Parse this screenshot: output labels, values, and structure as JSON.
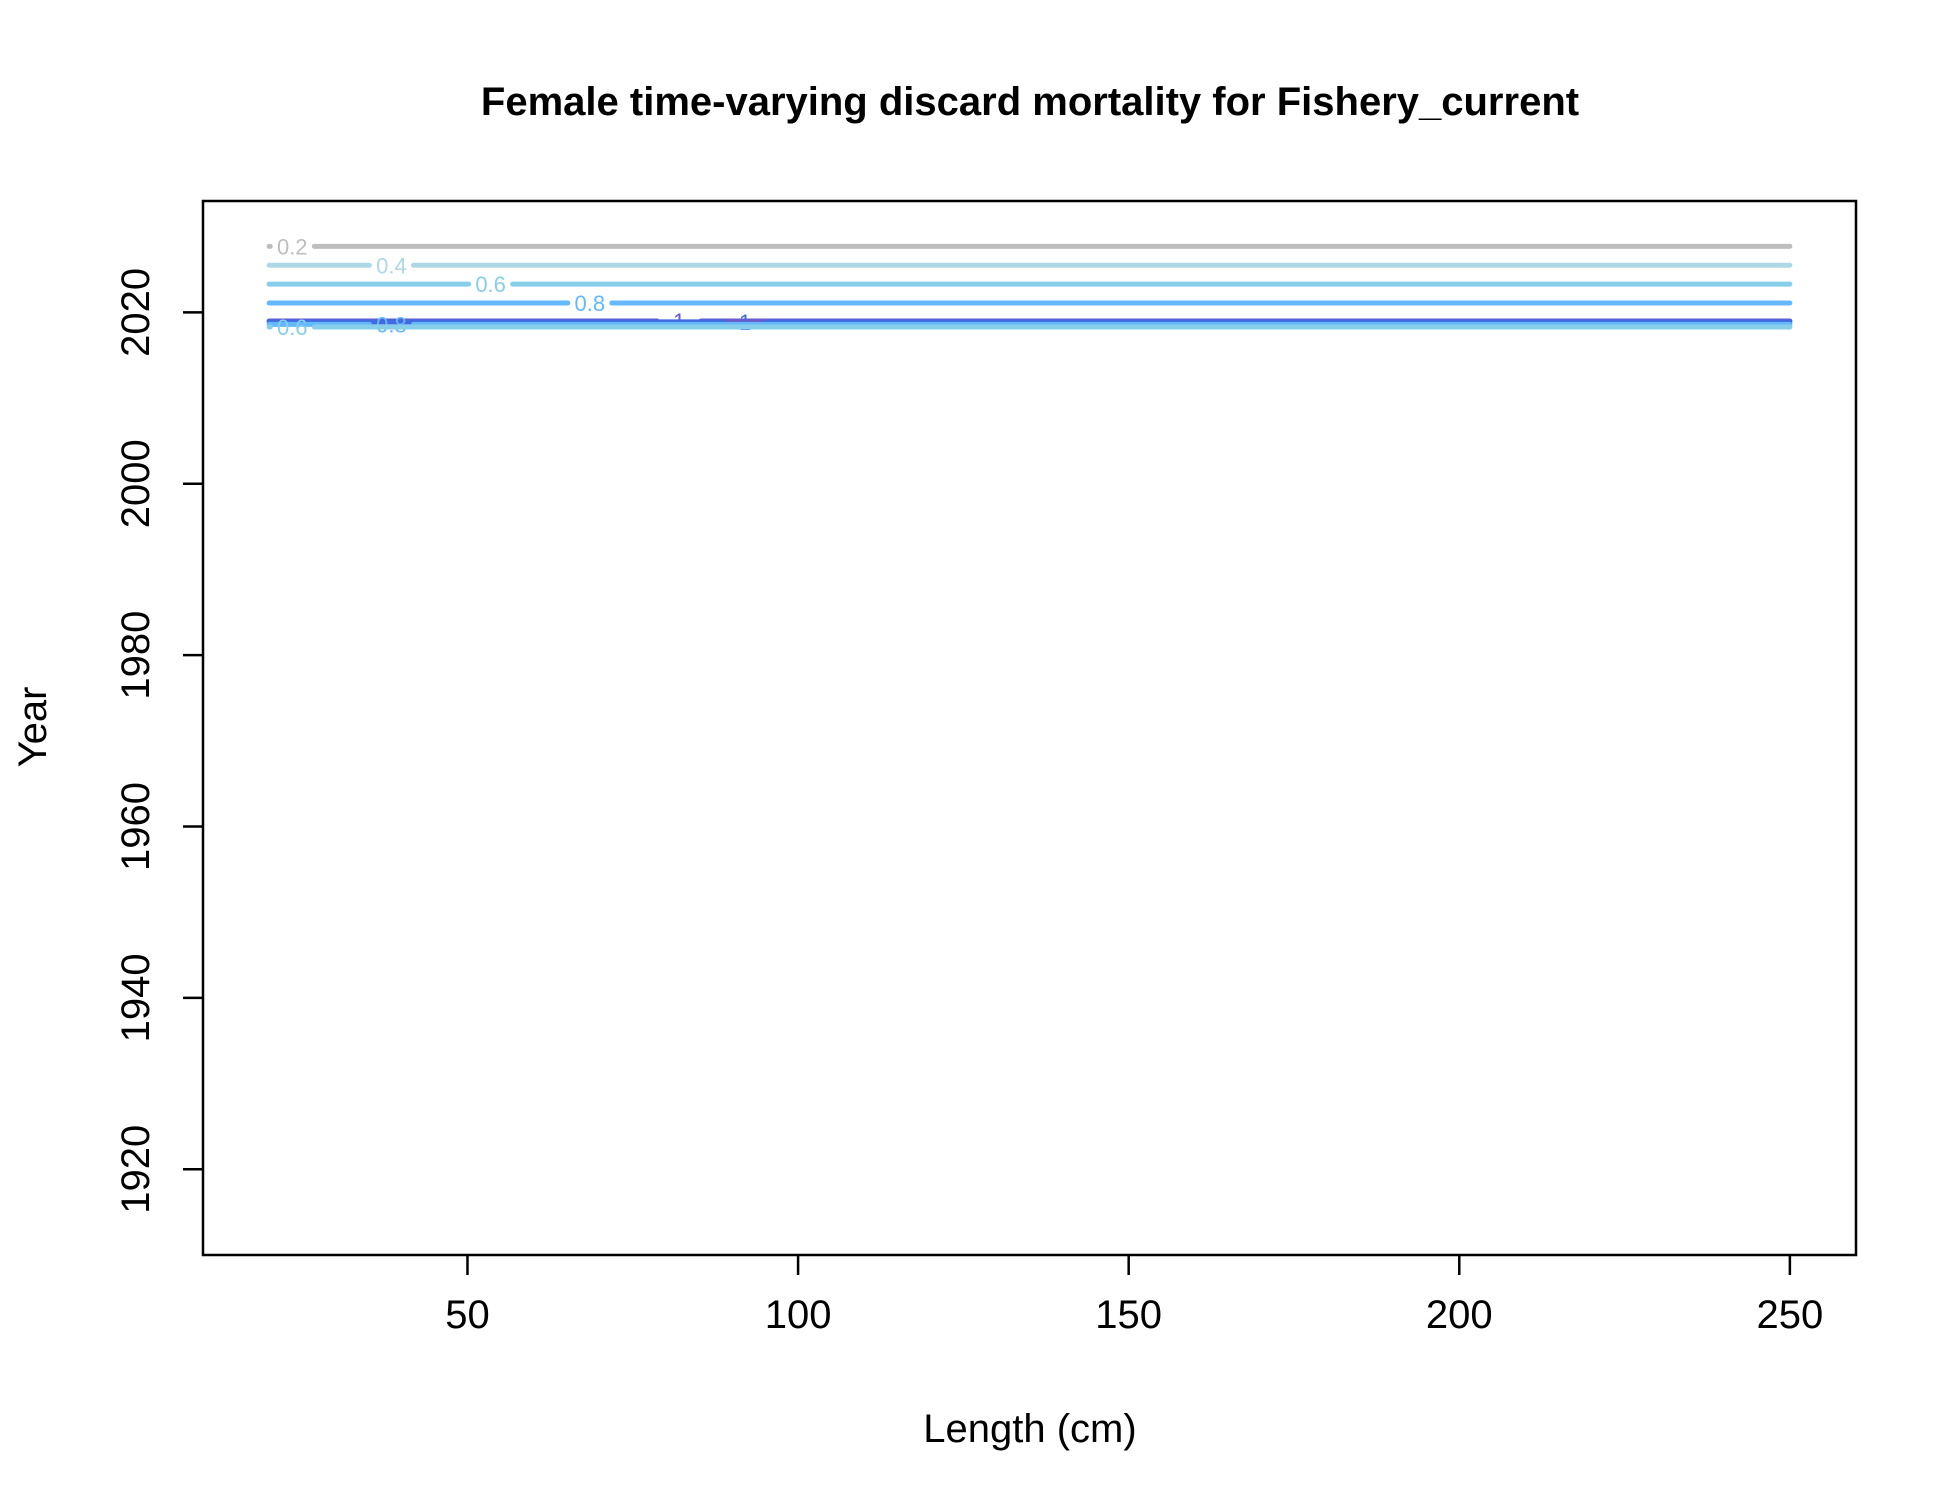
{
  "chart_data": {
    "type": "contour",
    "title": "Female time-varying discard mortality for Fishery_current",
    "xlabel": "Length (cm)",
    "ylabel": "Year",
    "xlim": [
      10,
      260
    ],
    "ylim": [
      1910,
      2033
    ],
    "x_ticks": [
      50,
      100,
      150,
      200,
      250
    ],
    "y_ticks": [
      1920,
      1940,
      1960,
      1980,
      2000,
      2020
    ],
    "x_range": [
      20,
      250
    ],
    "contours": [
      {
        "level": "0.2",
        "year": 2027.7,
        "color": "#bebebe",
        "label_x": 23.5
      },
      {
        "level": "0.4",
        "year": 2025.5,
        "color": "#add8e6",
        "label_x": 38.5
      },
      {
        "level": "0.6",
        "year": 2023.3,
        "color": "#87ceeb",
        "label_x": 53.5
      },
      {
        "level": "0.8",
        "year": 2021.1,
        "color": "#63b8ff",
        "label_x": 68.5
      },
      {
        "level": "1",
        "year": 2019.0,
        "color": "#6a5acd",
        "label_x": 82.0
      },
      {
        "level": "1",
        "year": 2018.9,
        "color": "#4169e1",
        "label_x": 92.0
      },
      {
        "level": "0.8",
        "year": 2018.6,
        "color": "#63b8ff",
        "label_x": 38.5
      },
      {
        "level": "0.6",
        "year": 2018.3,
        "color": "#87ceeb",
        "label_x": 23.5
      }
    ]
  }
}
